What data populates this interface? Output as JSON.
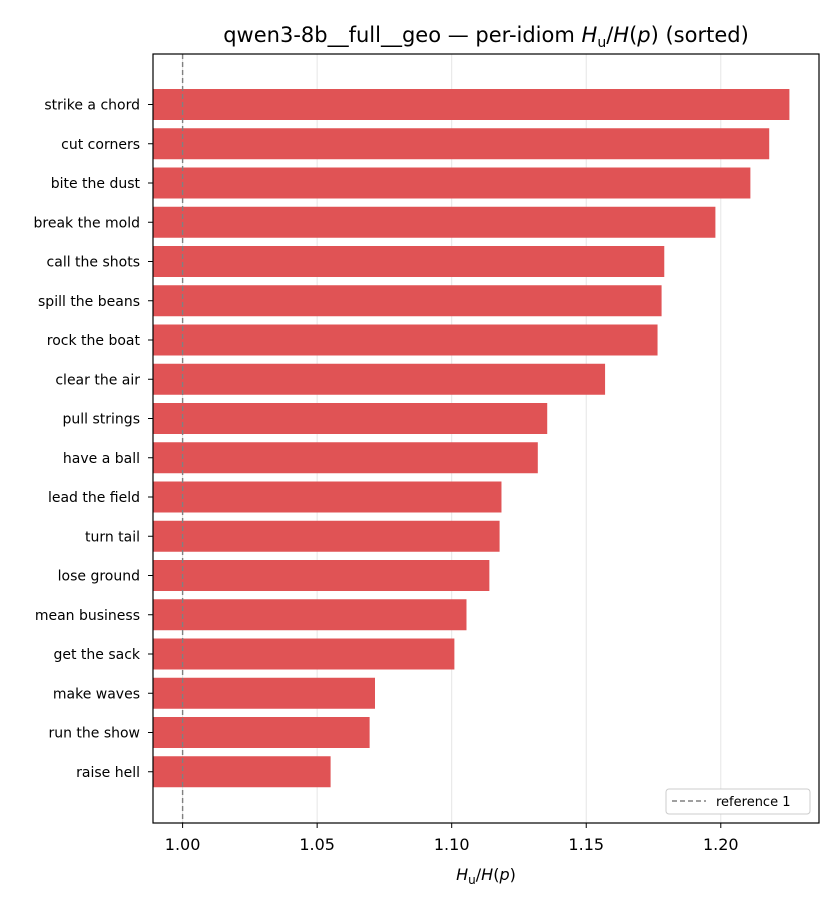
{
  "chart_data": {
    "type": "bar",
    "orientation": "horizontal",
    "title_prefix": "qwen3-8b__full__geo — per-idiom ",
    "title_suffix": " (sorted)",
    "xlabel": "H_u/H(p)",
    "ylabel": "",
    "categories": [
      "strike a chord",
      "cut corners",
      "bite the dust",
      "break the mold",
      "call the shots",
      "spill the beans",
      "rock the boat",
      "clear the air",
      "pull strings",
      "have a ball",
      "lead the field",
      "turn tail",
      "lose ground",
      "mean business",
      "get the sack",
      "make waves",
      "run the show",
      "raise hell"
    ],
    "values": [
      1.2255,
      1.218,
      1.211,
      1.198,
      1.179,
      1.178,
      1.1765,
      1.157,
      1.1355,
      1.132,
      1.1185,
      1.1178,
      1.114,
      1.1055,
      1.101,
      1.0715,
      1.0695,
      1.055
    ],
    "xlim": [
      0.989,
      1.2365
    ],
    "xticks": [
      1.0,
      1.05,
      1.1,
      1.15,
      1.2
    ],
    "xtick_labels": [
      "1.00",
      "1.05",
      "1.10",
      "1.15",
      "1.20"
    ],
    "reference_line": 1.0,
    "legend": {
      "label": "reference 1",
      "placement": "lower-right"
    },
    "grid": "x",
    "colors": {
      "bar": "#e05355",
      "reference": "#808080",
      "grid": "#e6e6e6"
    }
  }
}
